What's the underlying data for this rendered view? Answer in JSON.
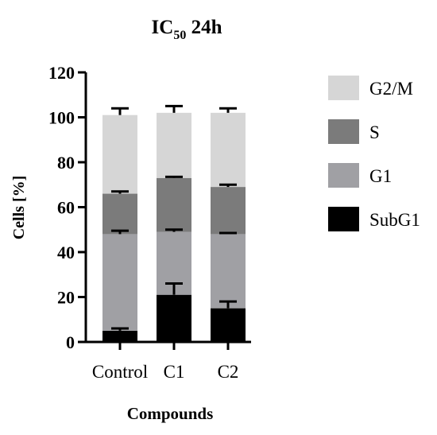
{
  "chart_data": {
    "type": "bar",
    "stacked": true,
    "title": {
      "main": "IC",
      "sub": "50",
      "suffix": " 24h"
    },
    "xlabel": "Compounds",
    "ylabel": "Cells [%]",
    "ylim": [
      0,
      120
    ],
    "yticks": [
      0,
      20,
      40,
      60,
      80,
      100,
      120
    ],
    "categories": [
      "Control",
      "C1",
      "C2"
    ],
    "series": [
      {
        "name": "SubG1",
        "color": "#000000",
        "values": [
          5,
          21,
          15
        ],
        "errors": [
          1,
          5,
          3
        ]
      },
      {
        "name": "G1",
        "color": "#a0a0a4",
        "values": [
          43,
          28,
          33
        ],
        "errors": [
          1.5,
          1,
          0.5
        ]
      },
      {
        "name": "S",
        "color": "#7b7b7b",
        "values": [
          18,
          24,
          21
        ],
        "errors": [
          1,
          0.5,
          1
        ]
      },
      {
        "name": "G2/M",
        "color": "#d6d6d6",
        "values": [
          35,
          29,
          33
        ],
        "errors": [
          3,
          3,
          2
        ]
      }
    ],
    "legend": {
      "position": "right",
      "order": [
        "G2/M",
        "S",
        "G1",
        "SubG1"
      ]
    }
  }
}
